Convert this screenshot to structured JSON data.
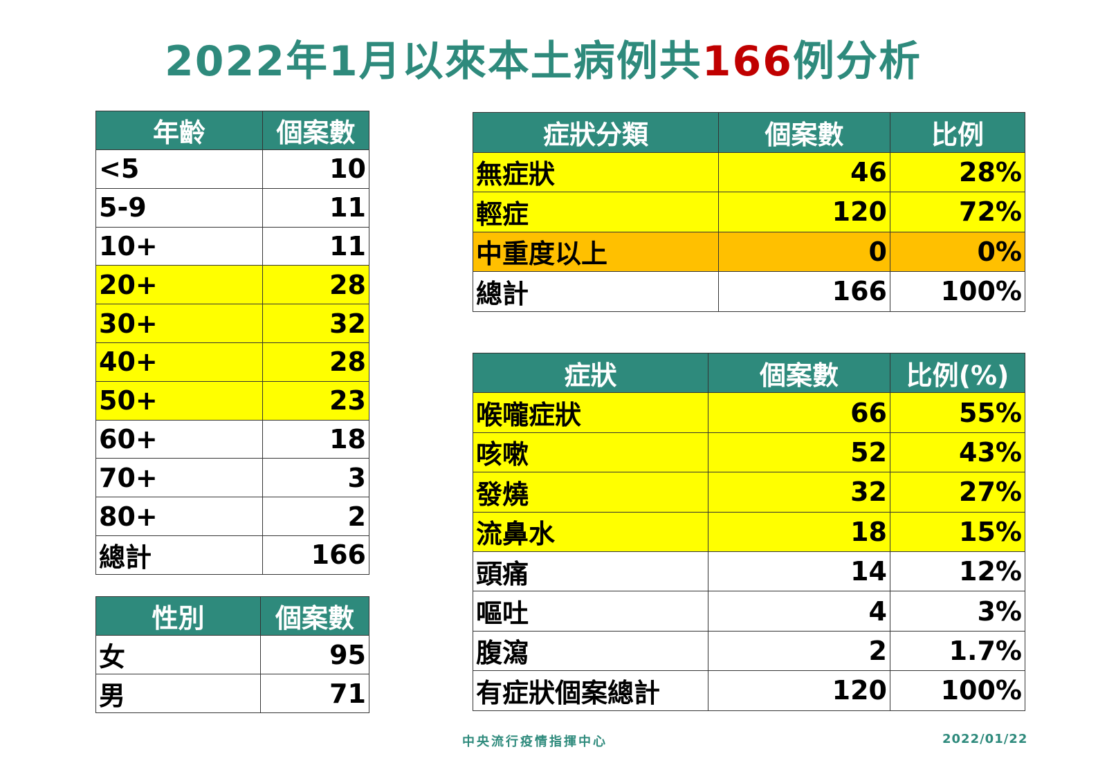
{
  "title": {
    "prefix": "2022年1月以來本土病例共",
    "highlight": "166",
    "suffix": "例分析"
  },
  "colors": {
    "header": "#2e8a7c",
    "highlight_red": "#c00000",
    "yellow": "#ffff00",
    "orange": "#ffc000"
  },
  "age_table": {
    "headers": [
      "年齡",
      "個案數"
    ],
    "rows": [
      {
        "cells": [
          "<5",
          "10"
        ],
        "hl": ""
      },
      {
        "cells": [
          "5-9",
          "11"
        ],
        "hl": ""
      },
      {
        "cells": [
          "10+",
          "11"
        ],
        "hl": ""
      },
      {
        "cells": [
          "20+",
          "28"
        ],
        "hl": "yellow"
      },
      {
        "cells": [
          "30+",
          "32"
        ],
        "hl": "yellow"
      },
      {
        "cells": [
          "40+",
          "28"
        ],
        "hl": "yellow"
      },
      {
        "cells": [
          "50+",
          "23"
        ],
        "hl": "yellow"
      },
      {
        "cells": [
          "60+",
          "18"
        ],
        "hl": ""
      },
      {
        "cells": [
          "70+",
          "3"
        ],
        "hl": ""
      },
      {
        "cells": [
          "80+",
          "2"
        ],
        "hl": ""
      },
      {
        "cells": [
          "總計",
          "166"
        ],
        "hl": ""
      }
    ]
  },
  "gender_table": {
    "headers": [
      "性別",
      "個案數"
    ],
    "rows": [
      {
        "cells": [
          "女",
          "95"
        ],
        "hl": ""
      },
      {
        "cells": [
          "男",
          "71"
        ],
        "hl": ""
      }
    ]
  },
  "severity_table": {
    "headers": [
      "症狀分類",
      "個案數",
      "比例"
    ],
    "rows": [
      {
        "cells": [
          "無症狀",
          "46",
          "28%"
        ],
        "hl": "yellow"
      },
      {
        "cells": [
          "輕症",
          "120",
          "72%"
        ],
        "hl": "yellow"
      },
      {
        "cells": [
          "中重度以上",
          "0",
          "0%"
        ],
        "hl": "orange"
      },
      {
        "cells": [
          "總計",
          "166",
          "100%"
        ],
        "hl": ""
      }
    ]
  },
  "symptom_table": {
    "headers": [
      "症狀",
      "個案數",
      "比例(%)"
    ],
    "rows": [
      {
        "cells": [
          "喉嚨症狀",
          "66",
          "55%"
        ],
        "hl": "yellow"
      },
      {
        "cells": [
          "咳嗽",
          "52",
          "43%"
        ],
        "hl": "yellow"
      },
      {
        "cells": [
          "發燒",
          "32",
          "27%"
        ],
        "hl": "yellow"
      },
      {
        "cells": [
          "流鼻水",
          "18",
          "15%"
        ],
        "hl": "yellow"
      },
      {
        "cells": [
          "頭痛",
          "14",
          "12%"
        ],
        "hl": ""
      },
      {
        "cells": [
          "嘔吐",
          "4",
          "3%"
        ],
        "hl": ""
      },
      {
        "cells": [
          "腹瀉",
          "2",
          "1.7%"
        ],
        "hl": ""
      },
      {
        "cells": [
          "有症狀個案總計",
          "120",
          "100%"
        ],
        "hl": ""
      }
    ]
  },
  "footer": {
    "org": "中央流行疫情指揮中心",
    "date": "2022/01/22"
  }
}
